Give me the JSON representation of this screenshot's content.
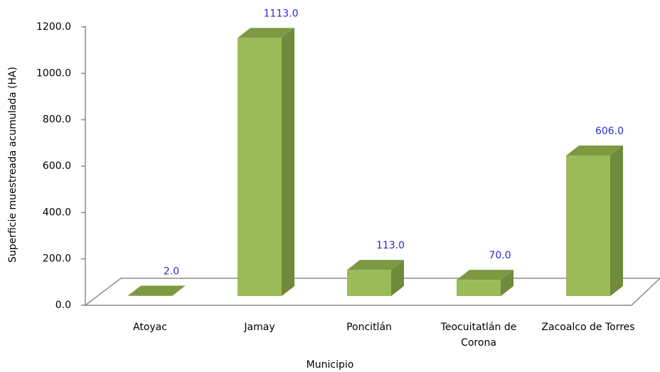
{
  "chart_data": {
    "type": "bar3d",
    "categories": [
      "Atoyac",
      "Jamay",
      "Poncitlán",
      "Teocuitatlán de Corona",
      "Zacoalco de Torres"
    ],
    "values": [
      2,
      1113,
      113,
      70,
      606
    ],
    "value_labels": [
      "2.0",
      "1113.0",
      "113.0",
      "70.0",
      "606.0"
    ],
    "color": "#9bbb59",
    "x_label": "Municipio",
    "y_label": "Superficie muestreada acumulada (HA)",
    "ylim": [
      0,
      1200
    ],
    "yticks": [
      {
        "value": 0,
        "label": "0.0"
      },
      {
        "value": 200,
        "label": "200.0"
      },
      {
        "value": 400,
        "label": "400.0"
      },
      {
        "value": 600,
        "label": "600.0"
      },
      {
        "value": 800,
        "label": "800.0"
      },
      {
        "value": 1000,
        "label": "1000.0"
      },
      {
        "value": 1200,
        "label": "1200.0"
      }
    ]
  }
}
